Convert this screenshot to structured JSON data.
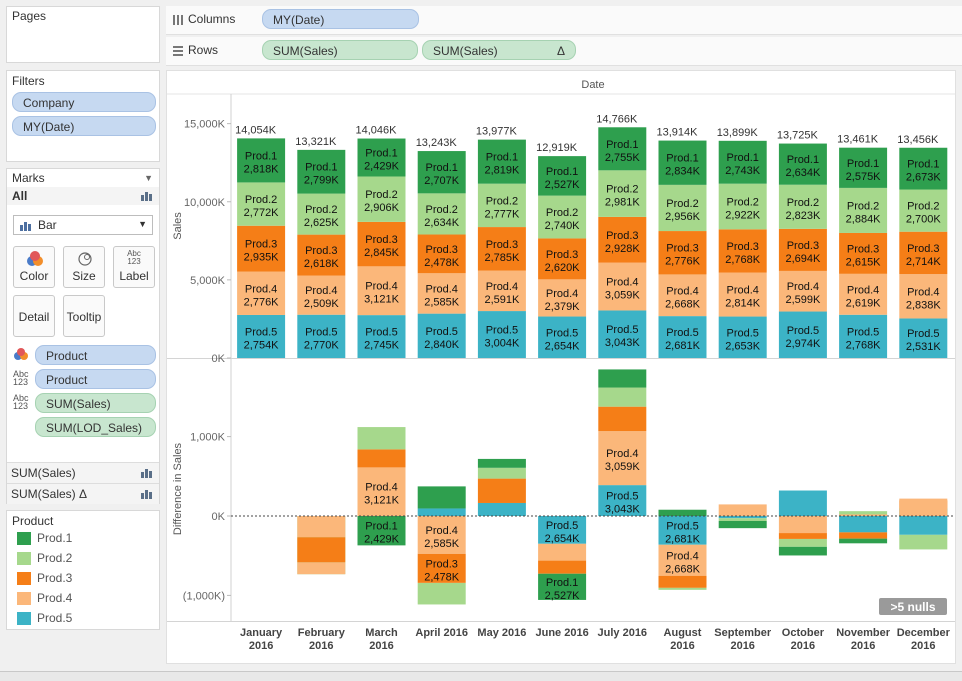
{
  "shelves": {
    "pages_title": "Pages",
    "columns_label": "Columns",
    "columns_pill": "MY(Date)",
    "rows_label": "Rows",
    "rows_pills": [
      "SUM(Sales)",
      "SUM(Sales)"
    ],
    "rows_pill2_delta": "Δ"
  },
  "filters": {
    "title": "Filters",
    "items": [
      "Company",
      "MY(Date)"
    ]
  },
  "marks": {
    "title": "Marks",
    "all_label": "All",
    "mark_type": "Bar",
    "buttons": [
      "Color",
      "Size",
      "Label",
      "Detail",
      "Tooltip"
    ],
    "label_icon_text": "Abc\n123",
    "fields": [
      {
        "icon": "color",
        "text": "Product",
        "color": "blue"
      },
      {
        "icon": "abc",
        "text": "Product",
        "color": "blue"
      },
      {
        "icon": "abc",
        "text": "SUM(Sales)",
        "color": "green"
      },
      {
        "icon": "",
        "text": "SUM(LOD_Sales)",
        "color": "green"
      }
    ],
    "measure_rows": [
      "SUM(Sales)",
      "SUM(Sales) Δ"
    ]
  },
  "legend": {
    "title": "Product",
    "items": [
      {
        "name": "Prod.1",
        "color": "#2e9f4e"
      },
      {
        "name": "Prod.2",
        "color": "#a6d88c"
      },
      {
        "name": "Prod.3",
        "color": "#f57e17"
      },
      {
        "name": "Prod.4",
        "color": "#fbb77a"
      },
      {
        "name": "Prod.5",
        "color": "#3cb3c6"
      }
    ]
  },
  "nulls_badge": ">5 nulls",
  "chart_data": {
    "type": "bar",
    "stacked": true,
    "header": "Date",
    "categories": [
      [
        "January",
        "2016"
      ],
      [
        "February",
        "2016"
      ],
      [
        "March",
        "2016"
      ],
      [
        "April 2016"
      ],
      [
        "May 2016"
      ],
      [
        "June 2016"
      ],
      [
        "July 2016"
      ],
      [
        "August",
        "2016"
      ],
      [
        "September",
        "2016"
      ],
      [
        "October",
        "2016"
      ],
      [
        "November",
        "2016"
      ],
      [
        "December",
        "2016"
      ]
    ],
    "top": {
      "ylabel": "Sales",
      "ylim": [
        0,
        16000
      ],
      "ticks": [
        0,
        5000,
        10000,
        15000
      ],
      "tick_labels": [
        "0K",
        "5,000K",
        "10,000K",
        "15,000K"
      ],
      "totals": [
        "14,054K",
        "13,321K",
        "14,046K",
        "13,243K",
        "13,977K",
        "12,919K",
        "14,766K",
        "13,914K",
        "13,899K",
        "13,725K",
        "13,461K",
        "13,456K"
      ],
      "series": [
        {
          "name": "Prod.5",
          "values": [
            2754,
            2770,
            2745,
            2840,
            3004,
            2654,
            3043,
            2681,
            2653,
            2974,
            2768,
            2531
          ],
          "labels": [
            "2,754K",
            "2,770K",
            "2,745K",
            "2,840K",
            "3,004K",
            "2,654K",
            "3,043K",
            "2,681K",
            "2,653K",
            "2,974K",
            "2,768K",
            "2,531K"
          ]
        },
        {
          "name": "Prod.4",
          "values": [
            2776,
            2509,
            3121,
            2585,
            2591,
            2379,
            3059,
            2668,
            2814,
            2599,
            2619,
            2838
          ],
          "labels": [
            "2,776K",
            "2,509K",
            "3,121K",
            "2,585K",
            "2,591K",
            "2,379K",
            "3,059K",
            "2,668K",
            "2,814K",
            "2,599K",
            "2,619K",
            "2,838K"
          ]
        },
        {
          "name": "Prod.3",
          "values": [
            2935,
            2618,
            2845,
            2478,
            2785,
            2620,
            2928,
            2776,
            2768,
            2694,
            2615,
            2714
          ],
          "labels": [
            "2,935K",
            "2,618K",
            "2,845K",
            "2,478K",
            "2,785K",
            "2,620K",
            "2,928K",
            "2,776K",
            "2,768K",
            "2,694K",
            "2,615K",
            "2,714K"
          ]
        },
        {
          "name": "Prod.2",
          "values": [
            2772,
            2625,
            2906,
            2634,
            2777,
            2740,
            2981,
            2956,
            2922,
            2823,
            2884,
            2700
          ],
          "labels": [
            "2,772K",
            "2,625K",
            "2,906K",
            "2,634K",
            "2,777K",
            "2,740K",
            "2,981K",
            "2,956K",
            "2,922K",
            "2,823K",
            "2,884K",
            "2,700K"
          ]
        },
        {
          "name": "Prod.1",
          "values": [
            2818,
            2799,
            2429,
            2707,
            2819,
            2527,
            2755,
            2834,
            2743,
            2634,
            2575,
            2673
          ],
          "labels": [
            "2,818K",
            "2,799K",
            "2,429K",
            "2,707K",
            "2,819K",
            "2,527K",
            "2,755K",
            "2,834K",
            "2,743K",
            "2,634K",
            "2,575K",
            "2,673K"
          ]
        }
      ]
    },
    "bottom": {
      "ylabel": "Difference in Sales",
      "ylim": [
        -1250,
        1850
      ],
      "ticks": [
        -1000,
        0,
        1000
      ],
      "tick_labels": [
        "(1,000K)",
        "0K",
        "1,000K"
      ],
      "months": [
        [],
        [
          {
            "s": "Prod.2",
            "from": 0,
            "to": -733
          },
          {
            "s": "Prod.4",
            "from": -733,
            "to": -582
          },
          {
            "s": "Prod.3",
            "from": -582,
            "to": -267
          },
          {
            "s": "Prod.4",
            "from": -267,
            "to": 0
          }
        ],
        [
          {
            "s": "Prod.1",
            "from": 0,
            "to": -370,
            "lines": [
              "Prod.1",
              "2,429K"
            ]
          },
          {
            "s": "Prod.4",
            "from": 0,
            "to": 612,
            "lines": [
              "Prod.4",
              "3,121K"
            ]
          },
          {
            "s": "Prod.3",
            "from": 612,
            "to": 839
          },
          {
            "s": "Prod.2",
            "from": 839,
            "to": 1120
          }
        ],
        [
          {
            "s": "Prod.2",
            "from": -842,
            "to": -1114
          },
          {
            "s": "Prod.3",
            "from": -475,
            "to": -842,
            "lines": [
              "Prod.3",
              "2,478K"
            ]
          },
          {
            "s": "Prod.4",
            "from": 0,
            "to": -475,
            "lines": [
              "Prod.4",
              "2,585K"
            ]
          },
          {
            "s": "Prod.5",
            "from": 0,
            "to": 95
          },
          {
            "s": "Prod.1",
            "from": 95,
            "to": 373
          }
        ],
        [
          {
            "s": "Prod.5",
            "from": 0,
            "to": 164
          },
          {
            "s": "Prod.3",
            "from": 164,
            "to": 471
          },
          {
            "s": "Prod.2",
            "from": 471,
            "to": 607
          },
          {
            "s": "Prod.1",
            "from": 607,
            "to": 719
          }
        ],
        [
          {
            "s": "Prod.5",
            "from": 0,
            "to": -350,
            "lines": [
              "Prod.5",
              "2,654K"
            ]
          },
          {
            "s": "Prod.4",
            "from": -350,
            "to": -562
          },
          {
            "s": "Prod.3",
            "from": -562,
            "to": -727
          },
          {
            "s": "Prod.1",
            "from": -727,
            "to": -1057,
            "lines": [
              "Prod.1",
              "2,527K"
            ]
          }
        ],
        [
          {
            "s": "Prod.5",
            "from": 0,
            "to": 389,
            "lines": [
              "Prod.5",
              "3,043K"
            ]
          },
          {
            "s": "Prod.4",
            "from": 389,
            "to": 1069,
            "lines": [
              "Prod.4",
              "3,059K"
            ]
          },
          {
            "s": "Prod.3",
            "from": 1069,
            "to": 1377
          },
          {
            "s": "Prod.2",
            "from": 1377,
            "to": 1618
          },
          {
            "s": "Prod.1",
            "from": 1618,
            "to": 1846
          }
        ],
        [
          {
            "s": "Prod.5",
            "from": 0,
            "to": -362,
            "lines": [
              "Prod.5",
              "2,681K"
            ]
          },
          {
            "s": "Prod.4",
            "from": -362,
            "to": -753,
            "lines": [
              "Prod.4",
              "2,668K"
            ]
          },
          {
            "s": "Prod.3",
            "from": -753,
            "to": -905
          },
          {
            "s": "Prod.2",
            "from": -905,
            "to": -930
          },
          {
            "s": "Prod.1",
            "from": 0,
            "to": 79
          }
        ],
        [
          {
            "s": "Prod.4",
            "from": 0,
            "to": 146
          },
          {
            "s": "Prod.5",
            "from": 0,
            "to": -28
          },
          {
            "s": "Prod.2",
            "from": -28,
            "to": -62
          },
          {
            "s": "Prod.1",
            "from": -62,
            "to": -153
          }
        ],
        [
          {
            "s": "Prod.5",
            "from": 0,
            "to": 321
          },
          {
            "s": "Prod.4",
            "from": 0,
            "to": -215
          },
          {
            "s": "Prod.3",
            "from": -215,
            "to": -289
          },
          {
            "s": "Prod.2",
            "from": -289,
            "to": -388
          },
          {
            "s": "Prod.1",
            "from": -388,
            "to": -497
          }
        ],
        [
          {
            "s": "Prod.2",
            "from": 0,
            "to": 61
          },
          {
            "s": "Prod.4",
            "from": 0,
            "to": 20
          },
          {
            "s": "Prod.5",
            "from": 0,
            "to": -206
          },
          {
            "s": "Prod.3",
            "from": -206,
            "to": -285
          },
          {
            "s": "Prod.1",
            "from": -285,
            "to": -344
          }
        ],
        [
          {
            "s": "Prod.1",
            "from": 0,
            "to": 98
          },
          {
            "s": "Prod.3",
            "from": 98,
            "to": 197
          },
          {
            "s": "Prod.4",
            "from": 0,
            "to": 219
          },
          {
            "s": "Prod.5",
            "from": 0,
            "to": -237
          },
          {
            "s": "Prod.2",
            "from": -237,
            "to": -421
          }
        ]
      ]
    }
  }
}
